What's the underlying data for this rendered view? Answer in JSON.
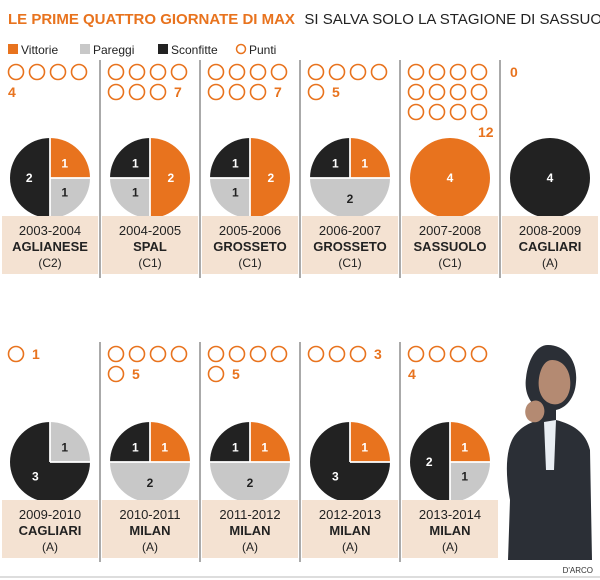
{
  "chart_data": {
    "type": "pie",
    "title_bold": "LE PRIME QUATTRO GIORNATE DI MAX",
    "title_rest": "SI SALVA SOLO LA STAGIONE DI SASSUOLO",
    "legend": [
      {
        "key": "vittorie",
        "label": "Vittorie"
      },
      {
        "key": "pareggi",
        "label": "Pareggi"
      },
      {
        "key": "sconfitte",
        "label": "Sconfitte"
      },
      {
        "key": "punti",
        "label": "Punti"
      }
    ],
    "colors": {
      "vittorie": "#e8731e",
      "pareggi": "#c8c8c8",
      "sconfitte": "#222222",
      "punti": "#e8731e",
      "band": "#f4e2d2"
    },
    "seasons": [
      {
        "season": "2003-2004",
        "team": "AGLIANESE",
        "league": "(C2)",
        "vittorie": 1,
        "pareggi": 1,
        "sconfitte": 2,
        "punti": 4
      },
      {
        "season": "2004-2005",
        "team": "SPAL",
        "league": "(C1)",
        "vittorie": 2,
        "pareggi": 1,
        "sconfitte": 1,
        "punti": 7
      },
      {
        "season": "2005-2006",
        "team": "GROSSETO",
        "league": "(C1)",
        "vittorie": 2,
        "pareggi": 1,
        "sconfitte": 1,
        "punti": 7
      },
      {
        "season": "2006-2007",
        "team": "GROSSETO",
        "league": "(C1)",
        "vittorie": 1,
        "pareggi": 2,
        "sconfitte": 1,
        "punti": 5
      },
      {
        "season": "2007-2008",
        "team": "SASSUOLO",
        "league": "(C1)",
        "vittorie": 4,
        "pareggi": 0,
        "sconfitte": 0,
        "punti": 12
      },
      {
        "season": "2008-2009",
        "team": "CAGLIARI",
        "league": "(A)",
        "vittorie": 0,
        "pareggi": 0,
        "sconfitte": 4,
        "punti": 0
      },
      {
        "season": "2009-2010",
        "team": "CAGLIARI",
        "league": "(A)",
        "vittorie": 0,
        "pareggi": 1,
        "sconfitte": 3,
        "punti": 1
      },
      {
        "season": "2010-2011",
        "team": "MILAN",
        "league": "(A)",
        "vittorie": 1,
        "pareggi": 2,
        "sconfitte": 1,
        "punti": 5
      },
      {
        "season": "2011-2012",
        "team": "MILAN",
        "league": "(A)",
        "vittorie": 1,
        "pareggi": 2,
        "sconfitte": 1,
        "punti": 5
      },
      {
        "season": "2012-2013",
        "team": "MILAN",
        "league": "(A)",
        "vittorie": 1,
        "pareggi": 0,
        "sconfitte": 3,
        "punti": 3
      },
      {
        "season": "2013-2014",
        "team": "MILAN",
        "league": "(A)",
        "vittorie": 1,
        "pareggi": 1,
        "sconfitte": 2,
        "punti": 4
      }
    ],
    "credit": "D'ARCO"
  }
}
